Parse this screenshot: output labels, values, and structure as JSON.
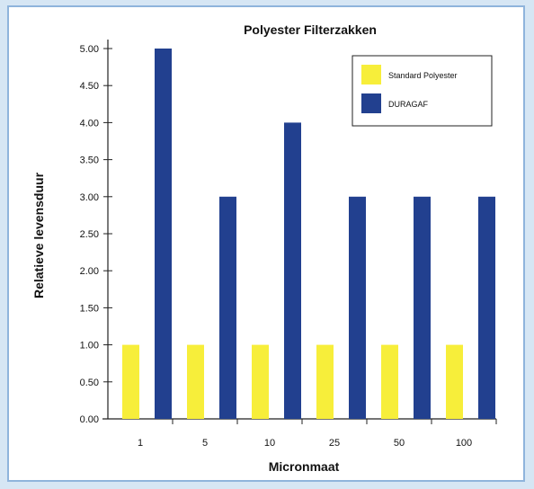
{
  "chart_data": {
    "type": "bar",
    "title": "Polyester Filterzakken",
    "xlabel": "Micronmaat",
    "ylabel": "Relatieve levensduur",
    "categories": [
      "1",
      "5",
      "10",
      "25",
      "50",
      "100"
    ],
    "series": [
      {
        "name": "Standard Polyester",
        "color": "#f7ee3a",
        "values": [
          1.0,
          1.0,
          1.0,
          1.0,
          1.0,
          1.0
        ]
      },
      {
        "name": "DURAGAF",
        "color": "#22408f",
        "values": [
          5.0,
          3.0,
          4.0,
          3.0,
          3.0,
          3.0
        ]
      }
    ],
    "ylim": [
      0,
      5
    ],
    "yticks": [
      "0.00",
      "0.50",
      "1.00",
      "1.50",
      "2.00",
      "2.50",
      "3.00",
      "3.50",
      "4.00",
      "4.50",
      "5.00"
    ],
    "grid": false,
    "legend_position": "top-right"
  }
}
